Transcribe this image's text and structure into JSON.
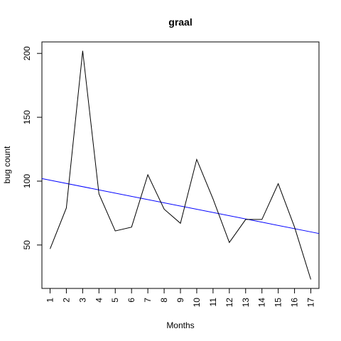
{
  "chart_data": {
    "type": "line",
    "title": "graal",
    "xlabel": "Months",
    "ylabel": "bug count",
    "x": [
      1,
      2,
      3,
      4,
      5,
      6,
      7,
      8,
      9,
      10,
      11,
      12,
      13,
      14,
      15,
      16,
      17
    ],
    "x_tick_labels": [
      "1",
      "2",
      "3",
      "4",
      "5",
      "6",
      "7",
      "8",
      "9",
      "10",
      "11",
      "12",
      "13",
      "14",
      "15",
      "16",
      "17"
    ],
    "series": [
      {
        "values": [
          47,
          79,
          202,
          90,
          61,
          64,
          105,
          78,
          67,
          117,
          86,
          52,
          70,
          70,
          98,
          64,
          23
        ],
        "color": "#000000"
      }
    ],
    "trend_line": {
      "color": "#0000ff",
      "start": [
        0.5,
        102
      ],
      "end": [
        17.5,
        59
      ]
    },
    "xlim": [
      0.5,
      17.5
    ],
    "ylim": [
      16,
      209
    ],
    "y_ticks": [
      50,
      100,
      150,
      200
    ],
    "y_tick_labels": [
      "50",
      "100",
      "150",
      "200"
    ],
    "grid": false,
    "legend": "none"
  }
}
